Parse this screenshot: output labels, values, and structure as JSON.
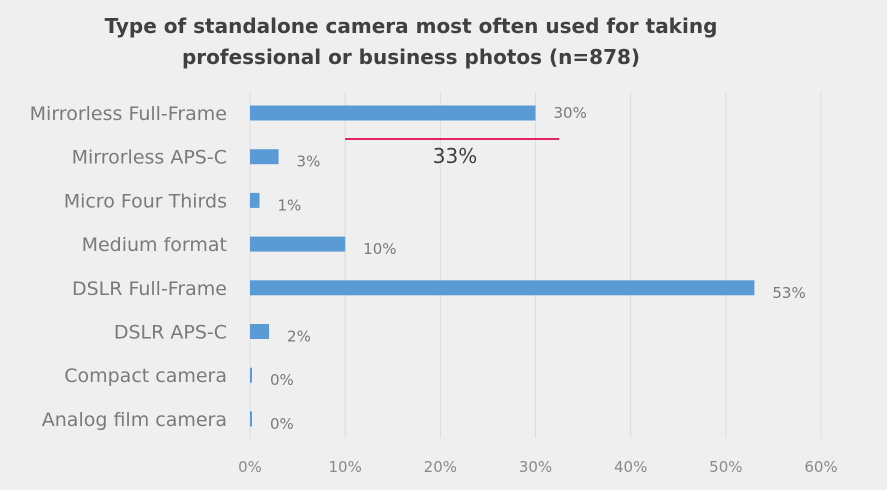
{
  "chart_data": {
    "type": "bar",
    "orientation": "horizontal",
    "title": "Type of standalone camera most often used for taking professional or business photos (n=878)",
    "title_lines": [
      "Type of standalone camera most often used for taking",
      "professional or business photos (n=878)"
    ],
    "categories": [
      "Mirrorless Full-Frame",
      "Mirrorless APS-C",
      "Micro Four Thirds",
      "Medium format",
      "DSLR Full-Frame",
      "DSLR APS-C",
      "Compact camera",
      "Analog film camera"
    ],
    "values": [
      30,
      3,
      1,
      10,
      53,
      2,
      0,
      0
    ],
    "value_labels": [
      "30%",
      "3%",
      "1%",
      "10%",
      "53%",
      "2%",
      "0%",
      "0%"
    ],
    "x_ticks": [
      0,
      10,
      20,
      30,
      40,
      50,
      60
    ],
    "x_tick_labels": [
      "0%",
      "10%",
      "20%",
      "30%",
      "40%",
      "50%",
      "60%"
    ],
    "xlim": [
      0,
      60
    ],
    "xlabel": "",
    "ylabel": "",
    "grid": "vertical",
    "legend": "none",
    "bar_color": "#5b9bd5",
    "annotation": {
      "text": "33%",
      "line_color": "#e0245e",
      "underline_from": 10,
      "underline_to": 32.5
    }
  },
  "colors": {
    "background": "#efefef",
    "gridline": "#dcdcdc",
    "title": "#404040",
    "labels": "#7a7a7a"
  }
}
